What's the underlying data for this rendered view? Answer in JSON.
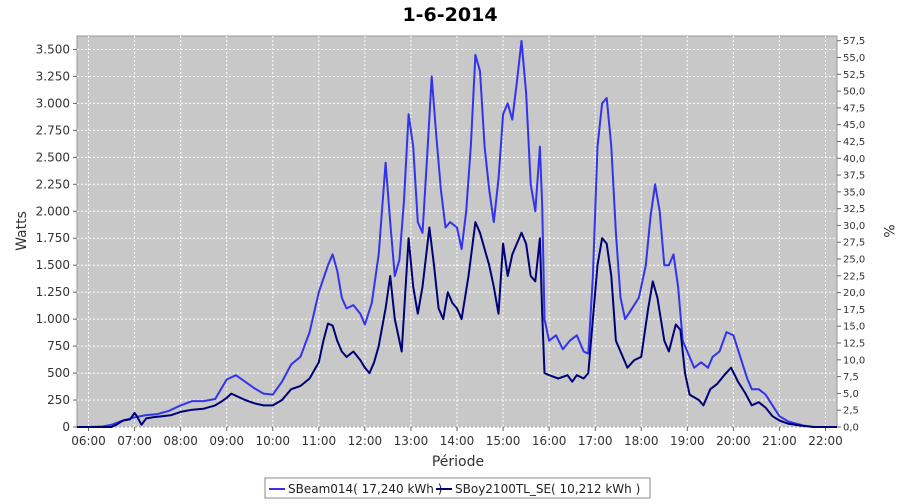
{
  "chart_data": {
    "type": "line",
    "title": "1-6-2014",
    "xlabel": "Période",
    "ylabel": "Watts",
    "y2label": "%",
    "x_ticks": [
      "06:00",
      "07:00",
      "08:00",
      "09:00",
      "10:00",
      "11:00",
      "12:00",
      "13:00",
      "14:00",
      "15:00",
      "16:00",
      "17:00",
      "18:00",
      "19:00",
      "20:00",
      "21:00",
      "22:00"
    ],
    "xlim": [
      5.75,
      22.25
    ],
    "ylim": [
      0,
      3625
    ],
    "y_ticks": [
      0,
      250,
      500,
      750,
      1000,
      1250,
      1500,
      1750,
      2000,
      2250,
      2500,
      2750,
      3000,
      3250,
      3500
    ],
    "y_tick_labels": [
      "0",
      "250",
      "500",
      "750",
      "1.000",
      "1.250",
      "1.500",
      "1.750",
      "2.000",
      "2.250",
      "2.500",
      "2.750",
      "3.000",
      "3.250",
      "3.500"
    ],
    "y2lim": [
      0,
      58.2
    ],
    "y2_ticks": [
      0,
      2.5,
      5,
      7.5,
      10,
      12.5,
      15,
      17.5,
      20,
      22.5,
      25,
      27.5,
      30,
      32.5,
      35,
      37.5,
      40,
      42.5,
      45,
      47.5,
      50,
      52.5,
      55,
      57.5
    ],
    "y2_tick_labels": [
      "0,0",
      "2,5",
      "5,0",
      "7,5",
      "10,0",
      "12,5",
      "15,0",
      "17,5",
      "20,0",
      "22,5",
      "25,0",
      "27,5",
      "30,0",
      "32,5",
      "35,0",
      "37,5",
      "40,0",
      "42,5",
      "45,0",
      "47,5",
      "50,0",
      "52,5",
      "55,0",
      "57,5"
    ],
    "grid": true,
    "background": "#c8c8c8",
    "legend_position": "bottom",
    "series": [
      {
        "name": "SBeam014( 17,240 kWh )",
        "color": "#3333ee",
        "points": [
          [
            5.75,
            0
          ],
          [
            6,
            0
          ],
          [
            6.3,
            5
          ],
          [
            6.5,
            20
          ],
          [
            6.75,
            60
          ],
          [
            7,
            90
          ],
          [
            7.25,
            110
          ],
          [
            7.5,
            120
          ],
          [
            7.75,
            150
          ],
          [
            8,
            200
          ],
          [
            8.25,
            240
          ],
          [
            8.5,
            240
          ],
          [
            8.75,
            260
          ],
          [
            9,
            440
          ],
          [
            9.2,
            480
          ],
          [
            9.4,
            420
          ],
          [
            9.6,
            360
          ],
          [
            9.8,
            310
          ],
          [
            10,
            300
          ],
          [
            10.2,
            420
          ],
          [
            10.4,
            580
          ],
          [
            10.6,
            650
          ],
          [
            10.8,
            880
          ],
          [
            11,
            1250
          ],
          [
            11.2,
            1500
          ],
          [
            11.3,
            1600
          ],
          [
            11.4,
            1450
          ],
          [
            11.5,
            1200
          ],
          [
            11.6,
            1100
          ],
          [
            11.75,
            1130
          ],
          [
            11.9,
            1050
          ],
          [
            12,
            950
          ],
          [
            12.15,
            1150
          ],
          [
            12.3,
            1600
          ],
          [
            12.45,
            2450
          ],
          [
            12.55,
            1900
          ],
          [
            12.65,
            1400
          ],
          [
            12.75,
            1550
          ],
          [
            12.85,
            2100
          ],
          [
            12.95,
            2900
          ],
          [
            13.05,
            2600
          ],
          [
            13.15,
            1900
          ],
          [
            13.25,
            1800
          ],
          [
            13.35,
            2500
          ],
          [
            13.45,
            3250
          ],
          [
            13.55,
            2700
          ],
          [
            13.65,
            2200
          ],
          [
            13.75,
            1850
          ],
          [
            13.85,
            1900
          ],
          [
            14,
            1850
          ],
          [
            14.1,
            1650
          ],
          [
            14.2,
            2000
          ],
          [
            14.3,
            2600
          ],
          [
            14.4,
            3450
          ],
          [
            14.5,
            3300
          ],
          [
            14.6,
            2600
          ],
          [
            14.7,
            2200
          ],
          [
            14.8,
            1900
          ],
          [
            14.9,
            2300
          ],
          [
            15,
            2900
          ],
          [
            15.1,
            3000
          ],
          [
            15.2,
            2850
          ],
          [
            15.3,
            3200
          ],
          [
            15.4,
            3580
          ],
          [
            15.5,
            3100
          ],
          [
            15.6,
            2250
          ],
          [
            15.7,
            2000
          ],
          [
            15.8,
            2600
          ],
          [
            15.85,
            2050
          ],
          [
            15.9,
            1000
          ],
          [
            16,
            800
          ],
          [
            16.15,
            850
          ],
          [
            16.3,
            720
          ],
          [
            16.45,
            800
          ],
          [
            16.6,
            850
          ],
          [
            16.75,
            700
          ],
          [
            16.85,
            680
          ],
          [
            16.95,
            1400
          ],
          [
            17.05,
            2600
          ],
          [
            17.15,
            3000
          ],
          [
            17.25,
            3050
          ],
          [
            17.35,
            2600
          ],
          [
            17.45,
            1800
          ],
          [
            17.55,
            1200
          ],
          [
            17.65,
            1000
          ],
          [
            17.8,
            1100
          ],
          [
            17.95,
            1200
          ],
          [
            18.1,
            1500
          ],
          [
            18.2,
            1950
          ],
          [
            18.3,
            2250
          ],
          [
            18.4,
            2000
          ],
          [
            18.5,
            1500
          ],
          [
            18.6,
            1500
          ],
          [
            18.7,
            1600
          ],
          [
            18.8,
            1300
          ],
          [
            18.9,
            800
          ],
          [
            19,
            700
          ],
          [
            19.15,
            550
          ],
          [
            19.3,
            600
          ],
          [
            19.45,
            550
          ],
          [
            19.55,
            650
          ],
          [
            19.7,
            700
          ],
          [
            19.85,
            880
          ],
          [
            20,
            850
          ],
          [
            20.15,
            650
          ],
          [
            20.3,
            450
          ],
          [
            20.4,
            350
          ],
          [
            20.55,
            350
          ],
          [
            20.7,
            300
          ],
          [
            20.85,
            200
          ],
          [
            21,
            100
          ],
          [
            21.2,
            50
          ],
          [
            21.5,
            15
          ],
          [
            21.75,
            0
          ],
          [
            22.25,
            0
          ]
        ]
      },
      {
        "name": "SBoy2100TL_SE( 10,212 kWh )",
        "color": "#000077",
        "points": [
          [
            5.75,
            0
          ],
          [
            6.3,
            0
          ],
          [
            6.5,
            0
          ],
          [
            6.6,
            20
          ],
          [
            6.75,
            60
          ],
          [
            6.9,
            70
          ],
          [
            7,
            130
          ],
          [
            7.05,
            100
          ],
          [
            7.15,
            20
          ],
          [
            7.25,
            80
          ],
          [
            7.4,
            90
          ],
          [
            7.6,
            100
          ],
          [
            7.8,
            110
          ],
          [
            8,
            140
          ],
          [
            8.25,
            160
          ],
          [
            8.5,
            170
          ],
          [
            8.75,
            200
          ],
          [
            8.9,
            240
          ],
          [
            9,
            270
          ],
          [
            9.1,
            310
          ],
          [
            9.25,
            280
          ],
          [
            9.4,
            250
          ],
          [
            9.6,
            220
          ],
          [
            9.8,
            200
          ],
          [
            10,
            200
          ],
          [
            10.2,
            250
          ],
          [
            10.4,
            350
          ],
          [
            10.6,
            380
          ],
          [
            10.8,
            450
          ],
          [
            11,
            600
          ],
          [
            11.1,
            800
          ],
          [
            11.2,
            960
          ],
          [
            11.3,
            940
          ],
          [
            11.4,
            800
          ],
          [
            11.5,
            700
          ],
          [
            11.6,
            650
          ],
          [
            11.75,
            700
          ],
          [
            11.9,
            620
          ],
          [
            12,
            550
          ],
          [
            12.1,
            500
          ],
          [
            12.2,
            600
          ],
          [
            12.3,
            750
          ],
          [
            12.45,
            1100
          ],
          [
            12.55,
            1400
          ],
          [
            12.65,
            1000
          ],
          [
            12.8,
            700
          ],
          [
            12.95,
            1750
          ],
          [
            13.05,
            1300
          ],
          [
            13.15,
            1050
          ],
          [
            13.25,
            1300
          ],
          [
            13.4,
            1850
          ],
          [
            13.5,
            1500
          ],
          [
            13.6,
            1100
          ],
          [
            13.7,
            1000
          ],
          [
            13.8,
            1250
          ],
          [
            13.9,
            1150
          ],
          [
            14,
            1100
          ],
          [
            14.1,
            1000
          ],
          [
            14.25,
            1400
          ],
          [
            14.4,
            1900
          ],
          [
            14.5,
            1800
          ],
          [
            14.6,
            1650
          ],
          [
            14.7,
            1500
          ],
          [
            14.8,
            1300
          ],
          [
            14.9,
            1050
          ],
          [
            15,
            1700
          ],
          [
            15.1,
            1400
          ],
          [
            15.2,
            1600
          ],
          [
            15.3,
            1700
          ],
          [
            15.4,
            1800
          ],
          [
            15.5,
            1700
          ],
          [
            15.6,
            1400
          ],
          [
            15.7,
            1350
          ],
          [
            15.8,
            1750
          ],
          [
            15.85,
            1050
          ],
          [
            15.9,
            500
          ],
          [
            16,
            480
          ],
          [
            16.2,
            450
          ],
          [
            16.4,
            480
          ],
          [
            16.5,
            420
          ],
          [
            16.6,
            480
          ],
          [
            16.75,
            450
          ],
          [
            16.85,
            500
          ],
          [
            16.95,
            1000
          ],
          [
            17.05,
            1500
          ],
          [
            17.15,
            1750
          ],
          [
            17.25,
            1700
          ],
          [
            17.35,
            1400
          ],
          [
            17.45,
            800
          ],
          [
            17.55,
            700
          ],
          [
            17.7,
            550
          ],
          [
            17.85,
            620
          ],
          [
            18,
            650
          ],
          [
            18.15,
            1100
          ],
          [
            18.25,
            1350
          ],
          [
            18.35,
            1200
          ],
          [
            18.5,
            800
          ],
          [
            18.6,
            700
          ],
          [
            18.75,
            950
          ],
          [
            18.85,
            900
          ],
          [
            18.95,
            500
          ],
          [
            19.05,
            300
          ],
          [
            19.25,
            250
          ],
          [
            19.35,
            200
          ],
          [
            19.5,
            350
          ],
          [
            19.65,
            400
          ],
          [
            19.8,
            480
          ],
          [
            19.95,
            550
          ],
          [
            20.1,
            420
          ],
          [
            20.25,
            320
          ],
          [
            20.4,
            200
          ],
          [
            20.55,
            230
          ],
          [
            20.7,
            180
          ],
          [
            20.85,
            100
          ],
          [
            21,
            60
          ],
          [
            21.2,
            30
          ],
          [
            21.5,
            10
          ],
          [
            21.75,
            0
          ],
          [
            22.25,
            0
          ]
        ]
      }
    ]
  }
}
